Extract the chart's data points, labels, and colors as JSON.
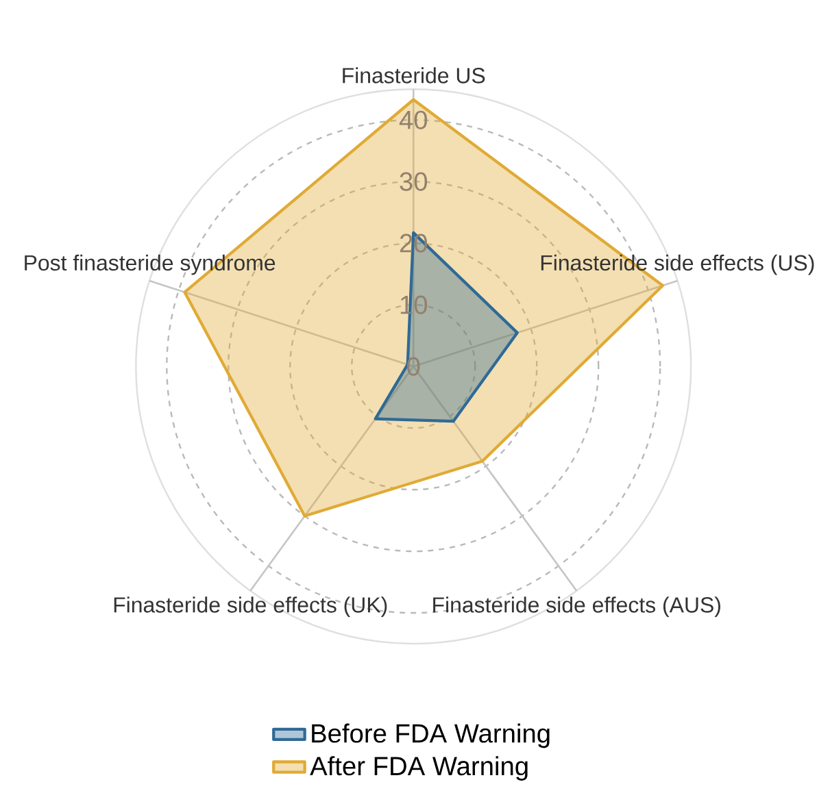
{
  "chart_data": {
    "type": "radar",
    "categories": [
      "Finasteride US",
      "Finasteride side effects (US)",
      "Finasteride side effects (AUS)",
      "Finasteride side effects (UK)",
      "Post finasteride syndrome"
    ],
    "series": [
      {
        "name": "Before FDA Warning",
        "color": "#2f6a96",
        "values": [
          21.7,
          17.7,
          11,
          10.5,
          1
        ]
      },
      {
        "name": "After FDA Warning",
        "color": "#e0aa35",
        "values": [
          43.3,
          42.5,
          19,
          30,
          39
        ]
      }
    ],
    "ylim": [
      0,
      45
    ],
    "yticks": [
      0,
      10,
      20,
      30,
      40
    ],
    "grid": true,
    "legend": "bottom"
  }
}
